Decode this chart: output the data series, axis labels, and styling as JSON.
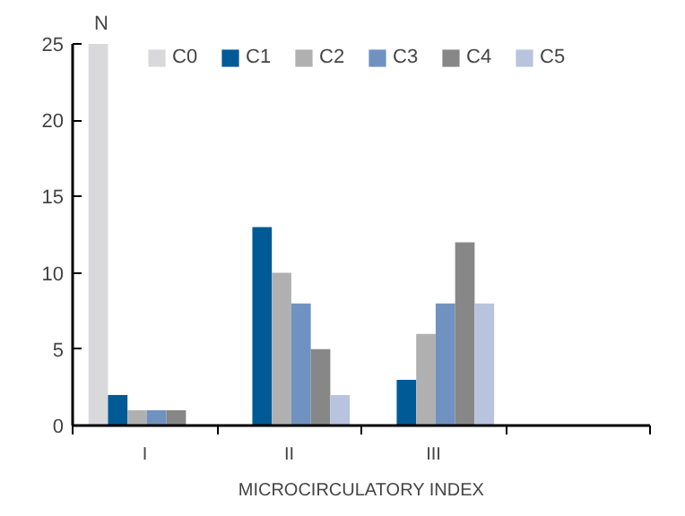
{
  "chart_data": {
    "type": "bar",
    "xlabel": "MICROCIRCULATORY INDEX",
    "ylabel": "N",
    "categories": [
      "I",
      "II",
      "III",
      null
    ],
    "series": [
      {
        "name": "C0",
        "color": "#d9d9db",
        "values": [
          25,
          0,
          0,
          null
        ]
      },
      {
        "name": "C1",
        "color": "#005a96",
        "values": [
          2,
          13,
          3,
          null
        ]
      },
      {
        "name": "C2",
        "color": "#b0b0b0",
        "values": [
          1,
          10,
          6,
          null
        ]
      },
      {
        "name": "C3",
        "color": "#7092c0",
        "values": [
          1,
          8,
          8,
          null
        ]
      },
      {
        "name": "C4",
        "color": "#878787",
        "values": [
          1,
          5,
          12,
          null
        ]
      },
      {
        "name": "C5",
        "color": "#b8c4de",
        "values": [
          0,
          2,
          8,
          null
        ]
      }
    ],
    "ylim": [
      0,
      25
    ],
    "yticks": [
      0,
      5,
      10,
      15,
      20,
      25
    ],
    "grid": false,
    "legend": "top"
  }
}
